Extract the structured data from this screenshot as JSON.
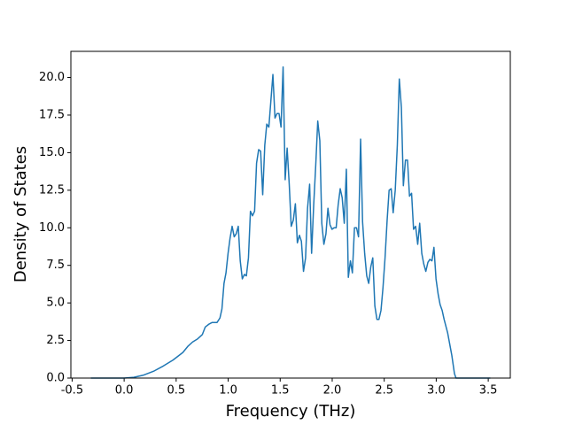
{
  "chart_data": {
    "type": "line",
    "xlabel": "Frequency (THz)",
    "ylabel": "Density of States",
    "x": [
      -0.32,
      0,
      0.094,
      0.188,
      0.282,
      0.376,
      0.47,
      0.564,
      0.611,
      0.658,
      0.705,
      0.752,
      0.78,
      0.818,
      0.846,
      0.893,
      0.921,
      0.94,
      0.96,
      0.979,
      0.999,
      1.018,
      1.038,
      1.058,
      1.077,
      1.097,
      1.116,
      1.136,
      1.156,
      1.175,
      1.195,
      1.214,
      1.234,
      1.254,
      1.273,
      1.293,
      1.312,
      1.332,
      1.352,
      1.371,
      1.391,
      1.41,
      1.43,
      1.45,
      1.469,
      1.489,
      1.508,
      1.528,
      1.548,
      1.567,
      1.587,
      1.606,
      1.626,
      1.646,
      1.665,
      1.685,
      1.704,
      1.724,
      1.744,
      1.763,
      1.783,
      1.802,
      1.822,
      1.842,
      1.861,
      1.881,
      1.9,
      1.92,
      1.94,
      1.959,
      1.979,
      1.998,
      2.018,
      2.038,
      2.057,
      2.077,
      2.096,
      2.116,
      2.136,
      2.155,
      2.175,
      2.194,
      2.214,
      2.234,
      2.253,
      2.273,
      2.292,
      2.312,
      2.332,
      2.351,
      2.371,
      2.39,
      2.41,
      2.43,
      2.449,
      2.469,
      2.488,
      2.508,
      2.528,
      2.547,
      2.567,
      2.586,
      2.606,
      2.626,
      2.645,
      2.665,
      2.684,
      2.704,
      2.724,
      2.743,
      2.763,
      2.782,
      2.802,
      2.822,
      2.841,
      2.861,
      2.88,
      2.9,
      2.92,
      2.939,
      2.959,
      2.978,
      2.998,
      3.018,
      3.037,
      3.057,
      3.076,
      3.11,
      3.15,
      3.175,
      3.19,
      3.52
    ],
    "series": [
      {
        "name": "DOS",
        "color": "#1f77b4",
        "values": [
          0,
          0,
          0.05,
          0.2,
          0.45,
          0.8,
          1.2,
          1.7,
          2.1,
          2.4,
          2.6,
          2.9,
          3.4,
          3.6,
          3.7,
          3.7,
          4.0,
          4.6,
          6.3,
          7.0,
          8.3,
          9.3,
          10.1,
          9.4,
          9.6,
          10.1,
          7.8,
          6.6,
          6.9,
          6.8,
          8.0,
          11.1,
          10.8,
          11.1,
          14.3,
          15.2,
          15.1,
          12.2,
          15.5,
          16.9,
          16.7,
          18.4,
          20.2,
          17.3,
          17.6,
          17.6,
          16.7,
          20.7,
          13.2,
          15.3,
          12.9,
          10.1,
          10.5,
          11.6,
          9.0,
          9.5,
          9.1,
          7.1,
          8.0,
          11.3,
          12.9,
          8.3,
          11.5,
          14.2,
          17.1,
          15.8,
          10.3,
          8.9,
          9.6,
          11.3,
          10.2,
          9.9,
          10.0,
          10.0,
          11.5,
          12.6,
          12.0,
          10.3,
          13.9,
          6.7,
          7.8,
          7.0,
          10.0,
          10.0,
          9.4,
          15.9,
          10.4,
          8.3,
          6.8,
          6.3,
          7.4,
          8.0,
          4.8,
          3.9,
          3.9,
          4.5,
          6.0,
          8.0,
          10.5,
          12.5,
          12.6,
          11.0,
          12.5,
          15.5,
          19.9,
          18.0,
          12.8,
          14.5,
          14.5,
          12.1,
          12.3,
          9.9,
          10.1,
          8.9,
          10.3,
          8.3,
          7.6,
          7.1,
          7.7,
          7.9,
          7.8,
          8.7,
          6.6,
          5.6,
          4.9,
          4.5,
          3.9,
          3.0,
          1.5,
          0.3,
          0,
          0
        ]
      }
    ],
    "xlim": [
      -0.512,
      3.712
    ],
    "ylim": [
      0,
      21.74
    ],
    "xticks": [
      -0.5,
      {
        "value": 0,
        "label": "0.0"
      },
      0.5,
      {
        "value": 1,
        "label": "1.0"
      },
      1.5,
      {
        "value": 2,
        "label": "2.0"
      },
      2.5,
      {
        "value": 3,
        "label": "3.0"
      },
      3.5
    ],
    "yticks": [
      {
        "value": 0,
        "label": "0.0"
      },
      2.5,
      {
        "value": 5,
        "label": "5.0"
      },
      7.5,
      {
        "value": 10,
        "label": "10.0"
      },
      12.5,
      {
        "value": 15,
        "label": "15.0"
      },
      17.5,
      {
        "value": 20,
        "label": "20.0"
      }
    ],
    "grid": false
  }
}
